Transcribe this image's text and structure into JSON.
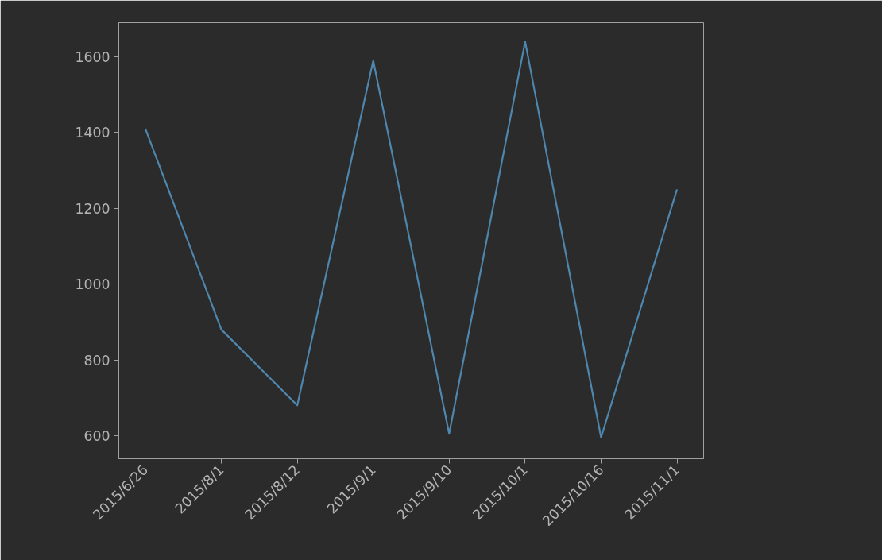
{
  "chart_data": {
    "type": "line",
    "categories": [
      "2015/6/26",
      "2015/8/1",
      "2015/8/12",
      "2015/9/1",
      "2015/9/10",
      "2015/10/1",
      "2015/10/16",
      "2015/11/1"
    ],
    "series": [
      {
        "color": "#4e86ad",
        "values": [
          1410,
          880,
          680,
          1590,
          605,
          1640,
          595,
          1250
        ]
      }
    ],
    "ylim": [
      539,
      1690
    ],
    "yticks": [
      600,
      800,
      1000,
      1200,
      1400,
      1600
    ],
    "grid": false
  }
}
